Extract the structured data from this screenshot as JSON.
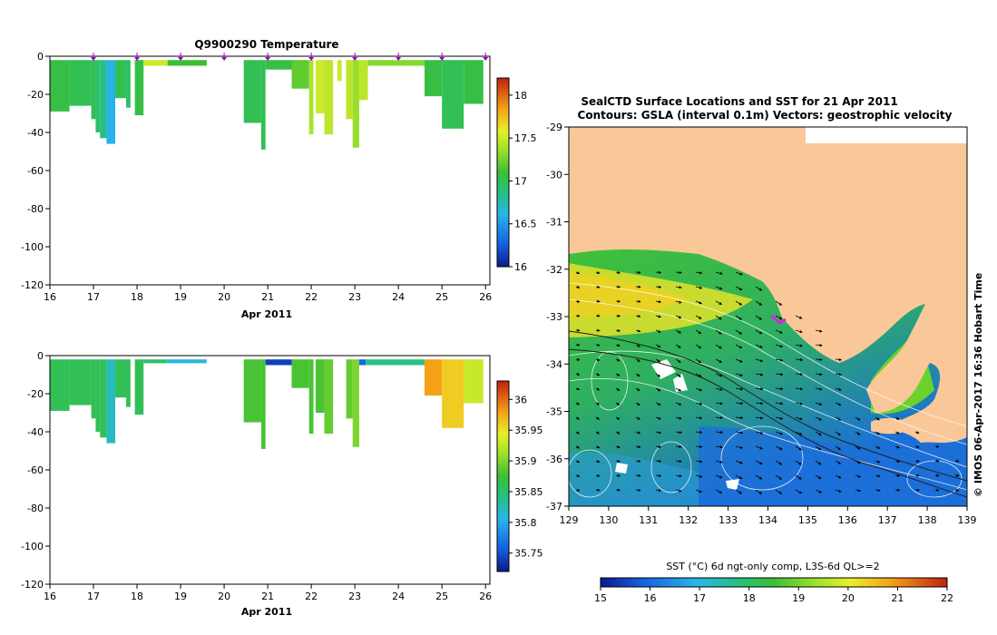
{
  "chart_data": [
    {
      "type": "heatmap",
      "id": "temperature",
      "title": "Q9900290  Temperature",
      "xlabel": "Apr 2011",
      "xlim": [
        16,
        26.1
      ],
      "ylim": [
        -120,
        0
      ],
      "xticks": [
        "16",
        "17",
        "18",
        "19",
        "20",
        "21",
        "22",
        "23",
        "24",
        "25",
        "26"
      ],
      "yticks": [
        "0",
        "-20",
        "-40",
        "-60",
        "-80",
        "-100",
        "-120"
      ],
      "surface_markers": [
        17,
        18,
        19,
        20,
        21,
        22,
        23,
        24,
        25,
        26
      ],
      "colorbar": {
        "min": 16,
        "max": 18.2,
        "ticks": [
          "16",
          "16.5",
          "17",
          "17.5",
          "18"
        ]
      },
      "profiles": [
        {
          "x0": 16.0,
          "x1": 16.45,
          "depth": 29,
          "value": 17.05
        },
        {
          "x0": 16.45,
          "x1": 16.95,
          "depth": 26,
          "value": 17.0
        },
        {
          "x0": 16.95,
          "x1": 17.05,
          "depth": 33,
          "value": 17.0
        },
        {
          "x0": 17.05,
          "x1": 17.15,
          "depth": 40,
          "value": 16.95
        },
        {
          "x0": 17.15,
          "x1": 17.3,
          "depth": 43,
          "value": 16.85
        },
        {
          "x0": 17.3,
          "x1": 17.5,
          "depth": 46,
          "value": 16.6
        },
        {
          "x0": 17.5,
          "x1": 17.75,
          "depth": 22,
          "value": 17.0
        },
        {
          "x0": 17.75,
          "x1": 17.85,
          "depth": 27,
          "value": 16.95
        },
        {
          "x0": 17.95,
          "x1": 18.15,
          "depth": 31,
          "value": 17.05
        },
        {
          "x0": 18.15,
          "x1": 18.7,
          "depth": 5,
          "value": 17.5
        },
        {
          "x0": 18.7,
          "x1": 19.6,
          "depth": 5,
          "value": 17.1
        },
        {
          "x0": 20.45,
          "x1": 20.85,
          "depth": 35,
          "value": 17.0
        },
        {
          "x0": 20.85,
          "x1": 20.95,
          "depth": 49,
          "value": 17.0
        },
        {
          "x0": 20.95,
          "x1": 21.55,
          "depth": 7,
          "value": 17.05
        },
        {
          "x0": 21.55,
          "x1": 21.95,
          "depth": 17,
          "value": 17.2
        },
        {
          "x0": 21.95,
          "x1": 22.05,
          "depth": 41,
          "value": 17.4
        },
        {
          "x0": 22.1,
          "x1": 22.3,
          "depth": 30,
          "value": 17.5
        },
        {
          "x0": 22.3,
          "x1": 22.5,
          "depth": 41,
          "value": 17.45
        },
        {
          "x0": 22.6,
          "x1": 22.7,
          "depth": 13,
          "value": 17.5
        },
        {
          "x0": 22.8,
          "x1": 22.95,
          "depth": 33,
          "value": 17.45
        },
        {
          "x0": 22.95,
          "x1": 23.1,
          "depth": 48,
          "value": 17.35
        },
        {
          "x0": 23.1,
          "x1": 23.3,
          "depth": 23,
          "value": 17.45
        },
        {
          "x0": 23.3,
          "x1": 24.6,
          "depth": 5,
          "value": 17.3
        },
        {
          "x0": 24.6,
          "x1": 25.0,
          "depth": 21,
          "value": 17.05
        },
        {
          "x0": 25.0,
          "x1": 25.5,
          "depth": 38,
          "value": 17.0
        },
        {
          "x0": 25.5,
          "x1": 25.95,
          "depth": 25,
          "value": 17.05
        }
      ]
    },
    {
      "type": "heatmap",
      "id": "salinity",
      "title": "",
      "xlabel": "Apr 2011",
      "xlim": [
        16,
        26.1
      ],
      "ylim": [
        -120,
        0
      ],
      "xticks": [
        "16",
        "17",
        "18",
        "19",
        "20",
        "21",
        "22",
        "23",
        "24",
        "25",
        "26"
      ],
      "yticks": [
        "0",
        "-20",
        "-40",
        "-60",
        "-80",
        "-100",
        "-120"
      ],
      "colorbar": {
        "min": 35.72,
        "max": 36.03,
        "ticks": [
          "35.75",
          "35.8",
          "35.85",
          "35.9",
          "35.95",
          "36"
        ]
      },
      "profiles": [
        {
          "x0": 16.0,
          "x1": 16.45,
          "depth": 29,
          "value": 35.86
        },
        {
          "x0": 16.45,
          "x1": 16.95,
          "depth": 26,
          "value": 35.86
        },
        {
          "x0": 16.95,
          "x1": 17.05,
          "depth": 33,
          "value": 35.86
        },
        {
          "x0": 17.05,
          "x1": 17.15,
          "depth": 40,
          "value": 35.86
        },
        {
          "x0": 17.15,
          "x1": 17.3,
          "depth": 43,
          "value": 35.86
        },
        {
          "x0": 17.3,
          "x1": 17.5,
          "depth": 46,
          "value": 35.82
        },
        {
          "x0": 17.5,
          "x1": 17.75,
          "depth": 22,
          "value": 35.86
        },
        {
          "x0": 17.75,
          "x1": 17.85,
          "depth": 27,
          "value": 35.86
        },
        {
          "x0": 17.95,
          "x1": 18.15,
          "depth": 31,
          "value": 35.86
        },
        {
          "x0": 18.15,
          "x1": 18.7,
          "depth": 4,
          "value": 35.85
        },
        {
          "x0": 18.7,
          "x1": 19.6,
          "depth": 4,
          "value": 35.81
        },
        {
          "x0": 20.45,
          "x1": 20.85,
          "depth": 35,
          "value": 35.88
        },
        {
          "x0": 20.85,
          "x1": 20.95,
          "depth": 49,
          "value": 35.88
        },
        {
          "x0": 20.95,
          "x1": 21.55,
          "depth": 5,
          "value": 35.74
        },
        {
          "x0": 21.55,
          "x1": 21.95,
          "depth": 17,
          "value": 35.88
        },
        {
          "x0": 21.95,
          "x1": 22.05,
          "depth": 41,
          "value": 35.88
        },
        {
          "x0": 22.1,
          "x1": 22.3,
          "depth": 30,
          "value": 35.88
        },
        {
          "x0": 22.3,
          "x1": 22.5,
          "depth": 41,
          "value": 35.89
        },
        {
          "x0": 22.8,
          "x1": 22.95,
          "depth": 33,
          "value": 35.89
        },
        {
          "x0": 22.95,
          "x1": 23.1,
          "depth": 48,
          "value": 35.9
        },
        {
          "x0": 23.1,
          "x1": 23.25,
          "depth": 5,
          "value": 35.76
        },
        {
          "x0": 23.25,
          "x1": 24.6,
          "depth": 5,
          "value": 35.84
        },
        {
          "x0": 24.6,
          "x1": 25.0,
          "depth": 21,
          "value": 35.98
        },
        {
          "x0": 25.0,
          "x1": 25.5,
          "depth": 38,
          "value": 35.96
        },
        {
          "x0": 25.5,
          "x1": 25.95,
          "depth": 25,
          "value": 35.93
        }
      ]
    },
    {
      "type": "heatmap",
      "id": "sst-map",
      "title_line1": "SealCTD Surface Locations and SST for 21 Apr 2011",
      "title_line2": "Contours: GSLA (interval 0.1m) Vectors: geostrophic velocity",
      "xlabel": "",
      "xlim": [
        129,
        139
      ],
      "ylim": [
        -37,
        -29
      ],
      "xticks": [
        "129",
        "130",
        "131",
        "132",
        "133",
        "134",
        "135",
        "136",
        "137",
        "138",
        "139"
      ],
      "yticks": [
        "-29",
        "-30",
        "-31",
        "-32",
        "-33",
        "-34",
        "-35",
        "-36",
        "-37"
      ],
      "colorbar": {
        "label": "SST (°C) 6d ngt-only comp, L3S-6d QL>=2",
        "min": 15,
        "max": 22,
        "ticks": [
          "15",
          "16",
          "17",
          "18",
          "19",
          "20",
          "21",
          "22"
        ]
      }
    }
  ],
  "credit": "© IMOS 06-Apr-2017 16:36 Hobart Time"
}
